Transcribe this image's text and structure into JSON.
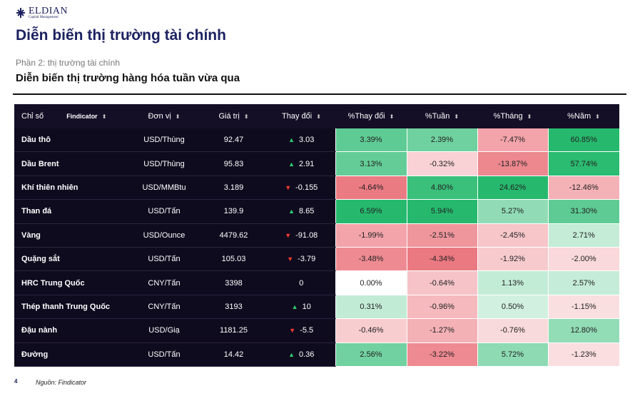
{
  "logo": {
    "name": "ELDIAN",
    "tagline": "Capital Management"
  },
  "title": "Diễn biến thị trường tài chính",
  "section": "Phần 2: thị trường tài chính",
  "heading": "Diễn biến thị trường hàng hóa tuần vừa qua",
  "table": {
    "brand": "Findicator",
    "columns": [
      "Chỉ số",
      "Đơn vị",
      "Giá trị",
      "Thay đổi",
      "%Thay đổi",
      "%Tuần",
      "%Tháng",
      "%Năm"
    ],
    "rows": [
      [
        "Dầu thô",
        "USD/Thùng",
        "92.47",
        "3.03",
        "3.39%",
        "2.39%",
        "-7.47%",
        "60.85%"
      ],
      [
        "Dầu Brent",
        "USD/Thùng",
        "95.83",
        "2.91",
        "3.13%",
        "-0.32%",
        "-13.87%",
        "57.74%"
      ],
      [
        "Khí thiên nhiên",
        "USD/MMBtu",
        "3.189",
        "-0.155",
        "-4.64%",
        "4.80%",
        "24.62%",
        "-12.46%"
      ],
      [
        "Than đá",
        "USD/Tấn",
        "139.9",
        "8.65",
        "6.59%",
        "5.94%",
        "5.27%",
        "31.30%"
      ],
      [
        "Vàng",
        "USD/Ounce",
        "4479.62",
        "-91.08",
        "-1.99%",
        "-2.51%",
        "-2.45%",
        "2.71%"
      ],
      [
        "Quặng sắt",
        "USD/Tấn",
        "105.03",
        "-3.79",
        "-3.48%",
        "-4.34%",
        "-1.92%",
        "-2.00%"
      ],
      [
        "HRC Trung Quốc",
        "CNY/Tấn",
        "3398",
        "0",
        "0.00%",
        "-0.64%",
        "1.13%",
        "2.57%"
      ],
      [
        "Thép thanh Trung Quốc",
        "CNY/Tấn",
        "3193",
        "10",
        "0.31%",
        "-0.96%",
        "0.50%",
        "-1.15%"
      ],
      [
        "Đậu nành",
        "USD/Giạ",
        "1181.25",
        "-5.5",
        "-0.46%",
        "-1.27%",
        "-0.76%",
        "12.80%"
      ],
      [
        "Đường",
        "USD/Tấn",
        "14.42",
        "0.36",
        "2.56%",
        "-3.22%",
        "5.72%",
        "-1.23%"
      ]
    ]
  },
  "footer": {
    "page": "4",
    "source": "Nguồn: Findicator"
  }
}
